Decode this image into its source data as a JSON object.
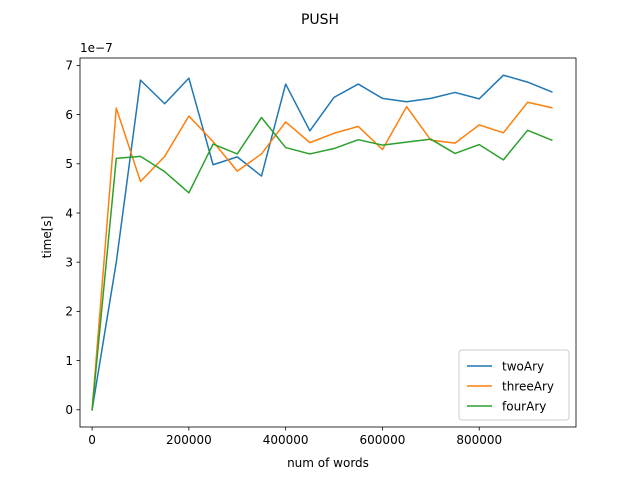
{
  "chart_data": {
    "type": "line",
    "title": "PUSH",
    "xlabel": "num of words",
    "ylabel": "time[s]",
    "y_offset_label": "1e−7",
    "xlim": [
      -25000,
      1000000
    ],
    "ylim": [
      -0.35,
      7.15
    ],
    "x_ticks": [
      0,
      200000,
      400000,
      600000,
      800000
    ],
    "x_tick_labels": [
      "0",
      "200000",
      "400000",
      "600000",
      "800000"
    ],
    "y_ticks": [
      0,
      1,
      2,
      3,
      4,
      5,
      6,
      7
    ],
    "y_tick_labels": [
      "0",
      "1",
      "2",
      "3",
      "4",
      "5",
      "6",
      "7"
    ],
    "grid": false,
    "legend_position": "lower-right",
    "x": [
      0,
      50000,
      100000,
      150000,
      200000,
      250000,
      300000,
      350000,
      400000,
      450000,
      500000,
      550000,
      600000,
      650000,
      700000,
      750000,
      800000,
      850000,
      900000,
      950000
    ],
    "series": [
      {
        "name": "twoAry",
        "color": "#1f77b4",
        "values": [
          0.0,
          3.0,
          6.7,
          6.22,
          6.74,
          4.98,
          5.14,
          4.75,
          6.62,
          5.67,
          6.35,
          6.62,
          6.33,
          6.26,
          6.33,
          6.45,
          6.32,
          6.8,
          6.66,
          6.46
        ]
      },
      {
        "name": "threeAry",
        "color": "#ff7f0e",
        "values": [
          0.0,
          6.13,
          4.64,
          5.15,
          5.97,
          5.45,
          4.85,
          5.2,
          5.85,
          5.43,
          5.62,
          5.76,
          5.29,
          6.16,
          5.48,
          5.42,
          5.79,
          5.63,
          6.25,
          6.14
        ]
      },
      {
        "name": "fourAry",
        "color": "#2ca02c",
        "values": [
          0.0,
          5.11,
          5.15,
          4.84,
          4.41,
          5.4,
          5.2,
          5.94,
          5.33,
          5.2,
          5.31,
          5.49,
          5.38,
          5.44,
          5.5,
          5.21,
          5.39,
          5.08,
          5.68,
          5.48
        ]
      }
    ]
  }
}
